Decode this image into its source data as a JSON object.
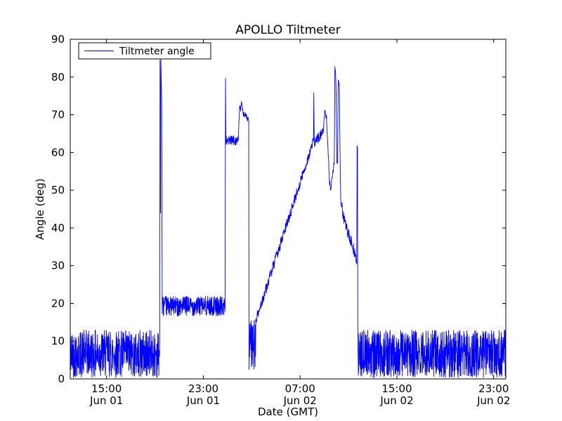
{
  "chart_data": {
    "type": "line",
    "title": "APOLLO Tiltmeter",
    "xlabel": "Date (GMT)",
    "ylabel": "Angle (deg)",
    "ylim": [
      0,
      90
    ],
    "x_range": [
      0,
      36
    ],
    "x_unit": "hours since Jun 01 12:00 GMT",
    "grid": false,
    "y_ticks": [
      0,
      10,
      20,
      30,
      40,
      50,
      60,
      70,
      80,
      90
    ],
    "x_ticks": [
      {
        "hour": 3,
        "time": "15:00",
        "date": "Jun 01"
      },
      {
        "hour": 11,
        "time": "23:00",
        "date": "Jun 01"
      },
      {
        "hour": 19,
        "time": "07:00",
        "date": "Jun 02"
      },
      {
        "hour": 27,
        "time": "15:00",
        "date": "Jun 02"
      },
      {
        "hour": 35,
        "time": "23:00",
        "date": "Jun 02"
      }
    ],
    "legend": {
      "label": "Tiltmeter angle",
      "position": "upper left"
    },
    "line_color": "#0000ff",
    "series_segments": [
      {
        "kind": "noise",
        "t0": 0.0,
        "t1": 7.4,
        "lo": 0.3,
        "hi": 13.0
      },
      {
        "kind": "path",
        "amp": 0,
        "points": [
          [
            7.4,
            9
          ],
          [
            7.42,
            84.5
          ],
          [
            7.46,
            44.0
          ],
          [
            7.49,
            85.0
          ],
          [
            7.56,
            73.0
          ],
          [
            7.6,
            20.0
          ]
        ]
      },
      {
        "kind": "flat",
        "t0": 7.6,
        "t1": 12.8,
        "base": 19.3,
        "amp": 2.6
      },
      {
        "kind": "path",
        "amp": 0,
        "points": [
          [
            12.8,
            20.0
          ],
          [
            12.83,
            79.7
          ],
          [
            12.87,
            63.5
          ]
        ]
      },
      {
        "kind": "flat",
        "t0": 12.87,
        "t1": 13.9,
        "base": 63.2,
        "amp": 1.3
      },
      {
        "kind": "path",
        "amp": 0.8,
        "points": [
          [
            13.9,
            64.0
          ],
          [
            14.0,
            72.5
          ],
          [
            14.08,
            71.5
          ],
          [
            14.15,
            72.8
          ],
          [
            14.3,
            70.5
          ],
          [
            14.55,
            69.5
          ],
          [
            14.75,
            68.5
          ]
        ]
      },
      {
        "kind": "path",
        "amp": 0,
        "points": [
          [
            14.75,
            68.5
          ],
          [
            14.78,
            2.5
          ]
        ]
      },
      {
        "kind": "noise",
        "t0": 14.78,
        "t1": 15.35,
        "lo": 2.0,
        "hi": 16.0
      },
      {
        "kind": "ramp",
        "t0": 15.35,
        "t1": 20.1,
        "from": 15.5,
        "to": 63.0,
        "amp": 1.4
      },
      {
        "kind": "path",
        "amp": 0,
        "points": [
          [
            20.1,
            63.0
          ],
          [
            20.13,
            75.8
          ],
          [
            20.17,
            62.5
          ]
        ]
      },
      {
        "kind": "ramp",
        "t0": 20.17,
        "t1": 20.9,
        "from": 62.5,
        "to": 65.5,
        "amp": 1.4
      },
      {
        "kind": "path",
        "amp": 0.8,
        "points": [
          [
            20.9,
            65.5
          ],
          [
            21.05,
            71.0
          ],
          [
            21.18,
            69.5
          ],
          [
            21.32,
            60.0
          ],
          [
            21.42,
            52.5
          ],
          [
            21.52,
            50.5
          ],
          [
            21.65,
            53.5
          ],
          [
            21.8,
            57.0
          ]
        ]
      },
      {
        "kind": "path",
        "amp": 0.5,
        "points": [
          [
            21.82,
            57.0
          ],
          [
            21.87,
            82.3
          ],
          [
            21.93,
            81.0
          ],
          [
            21.98,
            75.5
          ],
          [
            22.04,
            57.5
          ],
          [
            22.1,
            57.0
          ],
          [
            22.15,
            79.3
          ],
          [
            22.24,
            78.0
          ],
          [
            22.3,
            59.0
          ],
          [
            22.36,
            47.0
          ]
        ]
      },
      {
        "kind": "path",
        "amp": 1.6,
        "points": [
          [
            22.36,
            47.0
          ],
          [
            22.6,
            43.0
          ],
          [
            22.9,
            39.0
          ],
          [
            23.2,
            36.5
          ],
          [
            23.5,
            33.5
          ],
          [
            23.66,
            30.5
          ]
        ]
      },
      {
        "kind": "path",
        "amp": 0,
        "points": [
          [
            23.68,
            30.5
          ],
          [
            23.71,
            61.8
          ],
          [
            23.74,
            61.2
          ],
          [
            23.77,
            11.0
          ]
        ]
      },
      {
        "kind": "noise",
        "t0": 23.78,
        "t1": 36.0,
        "lo": 0.3,
        "hi": 13.0
      }
    ]
  }
}
